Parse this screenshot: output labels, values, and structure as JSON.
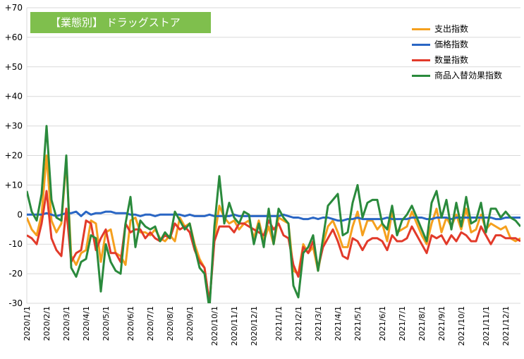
{
  "chart_data": {
    "type": "line",
    "title": "【業態別】 ドラッグストア",
    "xlabel": "",
    "ylabel": "",
    "ylim": [
      -30,
      70
    ],
    "yticks": [
      -30,
      -20,
      -10,
      0,
      10,
      20,
      30,
      40,
      50,
      60,
      70
    ],
    "ytick_labels": [
      "-30",
      "-20",
      "-10",
      "0",
      "+10",
      "+20",
      "+30",
      "+40",
      "+50",
      "+60",
      "+70"
    ],
    "xtick_labels": [
      "2020/1/1",
      "2020/2/1",
      "2020/3/1",
      "2020/4/1",
      "2020/5/1",
      "2020/6/1",
      "2020/7/1",
      "2020/8/1",
      "2020/9/1",
      "2020/10/1",
      "2020/11/1",
      "2020/12/1",
      "2021/1/1",
      "2021/2/1",
      "2021/3/1",
      "2021/4/1",
      "2021/5/1",
      "2021/6/1",
      "2021/7/1",
      "2021/8/1",
      "2021/9/1",
      "2021/10/1",
      "2021/11/1",
      "2021/12/1"
    ],
    "xtick_index": [
      0,
      4,
      8,
      12,
      16,
      21,
      25,
      29,
      33,
      38,
      42,
      46,
      51,
      55,
      59,
      63,
      67,
      72,
      76,
      80,
      84,
      88,
      93,
      97
    ],
    "n_points": 101,
    "grid": "horizontal",
    "legend_position": "top-right",
    "series": [
      {
        "name": "支出指数",
        "color": "#f5a01e",
        "values": [
          -1,
          -5,
          -7,
          0,
          20,
          -2,
          -6,
          -3,
          18,
          -14,
          -17,
          -13,
          -12,
          -2,
          -3,
          -16,
          -6,
          -5,
          -13,
          -14,
          -17,
          -2,
          -1,
          -6,
          -6,
          -7,
          -5,
          -8,
          -9,
          -7,
          -9,
          -1,
          -4,
          -3,
          -10,
          -15,
          -18,
          -30,
          -8,
          3,
          -1,
          -3,
          -2,
          -5,
          -3,
          -2,
          -8,
          -2,
          -9,
          -4,
          -10,
          -1,
          -2,
          -3,
          -19,
          -20,
          -10,
          -13,
          -11,
          -19,
          -10,
          -4,
          -2,
          -6,
          -11,
          -11,
          -4,
          1,
          -7,
          -2,
          -2,
          -5,
          -3,
          -9,
          1,
          -6,
          -5,
          -4,
          1,
          -3,
          -7,
          -10,
          -3,
          2,
          -6,
          -1,
          -4,
          0,
          -5,
          2,
          -6,
          -5,
          0,
          -5,
          -3,
          -4,
          -5,
          -4,
          -8,
          -9,
          -8
        ]
      },
      {
        "name": "価格指数",
        "color": "#2a66c4",
        "values": [
          0,
          0,
          0,
          0,
          0.5,
          0,
          -0.5,
          0,
          0.5,
          0.5,
          1,
          -0.5,
          1,
          0,
          0.5,
          0.5,
          1,
          1,
          0.5,
          0.5,
          0.5,
          0,
          0,
          -0.5,
          0,
          0,
          -0.5,
          0,
          0,
          0,
          0,
          0,
          -0.5,
          0,
          -0.5,
          -0.5,
          -0.5,
          0,
          -0.5,
          -0.5,
          -0.5,
          -0.5,
          0,
          -0.5,
          -0.5,
          -0.5,
          -0.5,
          -0.5,
          -0.5,
          -0.5,
          -0.5,
          -0.5,
          0,
          -0.5,
          -1,
          -1,
          -1.5,
          -1.5,
          -1,
          -1.5,
          -1,
          -1,
          -1.5,
          -2,
          -2,
          -1.5,
          -1.5,
          -1,
          -1.5,
          -1.5,
          -1.5,
          -1.5,
          -1.5,
          -1,
          -1.5,
          -1.5,
          -1.5,
          -1.5,
          -1,
          -1,
          -1,
          -1.5,
          -1.5,
          -1,
          -1,
          -1,
          -1.5,
          -1,
          -1,
          -1,
          -1,
          -1,
          -1,
          -1,
          -1,
          -1.5,
          -1.5,
          -1,
          -1,
          -1,
          -1
        ]
      },
      {
        "name": "数量指数",
        "color": "#e23a2a",
        "values": [
          -7,
          -8,
          -10,
          -3,
          8,
          -8,
          -12,
          -14,
          2,
          -16,
          -13,
          -12,
          -2,
          -3,
          -12,
          -8,
          -5,
          -13,
          -13,
          -16,
          -3,
          -6,
          -5,
          -5,
          -8,
          -6,
          -8,
          -9,
          -7,
          -8,
          -3,
          -5,
          -4,
          -6,
          -12,
          -16,
          -18,
          -30,
          -9,
          -4,
          -4,
          -4,
          -6,
          -3,
          -3,
          -4,
          -5,
          -6,
          -7,
          -2,
          -5,
          -3,
          -7,
          -8,
          -17,
          -21,
          -11,
          -13,
          -9,
          -18,
          -11,
          -8,
          -5,
          -9,
          -14,
          -15,
          -8,
          -9,
          -12,
          -9,
          -8,
          -8,
          -9,
          -12,
          -7,
          -9,
          -9,
          -8,
          -4,
          -7,
          -10,
          -13,
          -7,
          -8,
          -7,
          -10,
          -7,
          -9,
          -6,
          -7,
          -9,
          -9,
          -4,
          -7,
          -10,
          -7,
          -7,
          -8,
          -8,
          -8,
          -9
        ]
      },
      {
        "name": "商品入替効果指数",
        "color": "#2a8a3c",
        "values": [
          8,
          1,
          -2,
          7,
          30,
          5,
          -1,
          -2,
          20,
          -18,
          -21,
          -16,
          -15,
          -7,
          -8,
          -26,
          -10,
          -16,
          -19,
          -20,
          -3,
          6,
          -11,
          -2,
          -4,
          -5,
          -4,
          -9,
          -6,
          -8,
          1,
          -2,
          -5,
          -3,
          -11,
          -18,
          -20,
          -32,
          -4,
          13,
          -3,
          4,
          -1,
          -3,
          1,
          0,
          -10,
          -3,
          -11,
          2,
          -10,
          2,
          -1,
          -3,
          -24,
          -28,
          -13,
          -11,
          -7,
          -19,
          -8,
          3,
          5,
          7,
          -7,
          -6,
          4,
          10,
          -1,
          4,
          5,
          5,
          -3,
          -5,
          3,
          -7,
          -2,
          0,
          3,
          -1,
          -5,
          -9,
          4,
          8,
          -1,
          5,
          -5,
          4,
          -4,
          6,
          -3,
          -2,
          4,
          -6,
          2,
          2,
          -1,
          1,
          -1,
          -2,
          -4
        ]
      }
    ]
  }
}
